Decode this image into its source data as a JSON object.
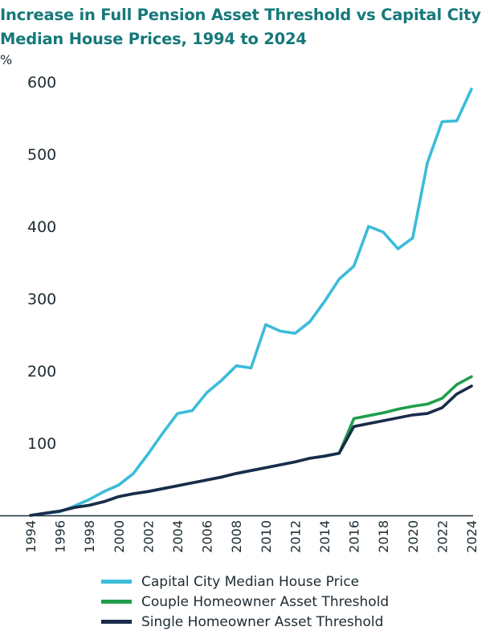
{
  "title": "Increase in Full Pension Asset Threshold vs Capital City Median House Prices, 1994 to 2024",
  "chart_data": {
    "type": "line",
    "title": "Increase in Full Pension Asset Threshold vs Capital City Median House Prices, 1994 to 2024",
    "ylabel": "%",
    "xlabel": "",
    "ylim": [
      0,
      600
    ],
    "yticks": [
      100,
      200,
      300,
      400,
      500,
      600
    ],
    "x": [
      1994,
      1995,
      1996,
      1997,
      1998,
      1999,
      2000,
      2001,
      2002,
      2003,
      2004,
      2005,
      2006,
      2007,
      2008,
      2009,
      2010,
      2011,
      2012,
      2013,
      2014,
      2015,
      2016,
      2017,
      2018,
      2019,
      2020,
      2021,
      2022,
      2023,
      2024
    ],
    "xticks": [
      "1994",
      "1996",
      "1998",
      "2000",
      "2002",
      "2004",
      "2006",
      "2008",
      "2010",
      "2012",
      "2014",
      "2016",
      "2018",
      "2020",
      "2022",
      "2024"
    ],
    "series": [
      {
        "name": "Capital City Median House Price",
        "color": "#3bbcd9",
        "values": [
          0,
          3,
          5,
          13,
          22,
          33,
          42,
          58,
          85,
          114,
          141,
          145,
          170,
          187,
          207,
          204,
          264,
          255,
          252,
          268,
          296,
          327,
          345,
          400,
          392,
          369,
          384,
          488,
          545,
          546,
          590
        ]
      },
      {
        "name": "Couple Homeowner Asset Threshold",
        "color": "#1f9e4c",
        "values": [
          0,
          3,
          6,
          11,
          14,
          19,
          26,
          30,
          33,
          37,
          41,
          45,
          49,
          53,
          58,
          62,
          66,
          70,
          74,
          79,
          82,
          86,
          134,
          138,
          142,
          147,
          151,
          154,
          162,
          181,
          192
        ]
      },
      {
        "name": "Single Homeowner Asset Threshold",
        "color": "#1a2b4c",
        "values": [
          0,
          3,
          6,
          11,
          14,
          19,
          26,
          30,
          33,
          37,
          41,
          45,
          49,
          53,
          58,
          62,
          66,
          70,
          74,
          79,
          82,
          86,
          123,
          127,
          131,
          135,
          139,
          141,
          149,
          168,
          179
        ]
      }
    ],
    "legend": "bottom"
  }
}
